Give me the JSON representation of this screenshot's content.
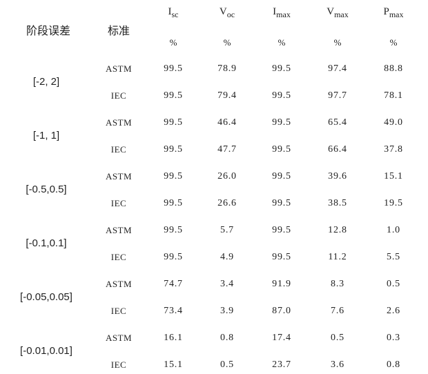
{
  "table": {
    "headers": {
      "stage": "阶段误差",
      "standard": "标准",
      "columns": [
        {
          "main": "I",
          "sub": "sc",
          "unit": "%"
        },
        {
          "main": "V",
          "sub": "oc",
          "unit": "%"
        },
        {
          "main": "I",
          "sub": "max",
          "unit": "%"
        },
        {
          "main": "V",
          "sub": "max",
          "unit": "%"
        },
        {
          "main": "P",
          "sub": "max",
          "unit": "%"
        }
      ]
    },
    "groups": [
      {
        "range": "[-2, 2]",
        "rows": [
          {
            "standard": "ASTM",
            "values": [
              "99.5",
              "78.9",
              "99.5",
              "97.4",
              "88.8"
            ]
          },
          {
            "standard": "IEC",
            "values": [
              "99.5",
              "79.4",
              "99.5",
              "97.7",
              "78.1"
            ]
          }
        ]
      },
      {
        "range": "[-1, 1]",
        "rows": [
          {
            "standard": "ASTM",
            "values": [
              "99.5",
              "46.4",
              "99.5",
              "65.4",
              "49.0"
            ]
          },
          {
            "standard": "IEC",
            "values": [
              "99.5",
              "47.7",
              "99.5",
              "66.4",
              "37.8"
            ]
          }
        ]
      },
      {
        "range": "[-0.5,0.5]",
        "rows": [
          {
            "standard": "ASTM",
            "values": [
              "99.5",
              "26.0",
              "99.5",
              "39.6",
              "15.1"
            ]
          },
          {
            "standard": "IEC",
            "values": [
              "99.5",
              "26.6",
              "99.5",
              "38.5",
              "19.5"
            ]
          }
        ]
      },
      {
        "range": "[-0.1,0.1]",
        "rows": [
          {
            "standard": "ASTM",
            "values": [
              "99.5",
              "5.7",
              "99.5",
              "12.8",
              "1.0"
            ]
          },
          {
            "standard": "IEC",
            "values": [
              "99.5",
              "4.9",
              "99.5",
              "11.2",
              "5.5"
            ]
          }
        ]
      },
      {
        "range": "[-0.05,0.05]",
        "rows": [
          {
            "standard": "ASTM",
            "values": [
              "74.7",
              "3.4",
              "91.9",
              "8.3",
              "0.5"
            ]
          },
          {
            "standard": "IEC",
            "values": [
              "73.4",
              "3.9",
              "87.0",
              "7.6",
              "2.6"
            ]
          }
        ]
      },
      {
        "range": "[-0.01,0.01]",
        "rows": [
          {
            "standard": "ASTM",
            "values": [
              "16.1",
              "0.8",
              "17.4",
              "0.5",
              "0.3"
            ]
          },
          {
            "standard": "IEC",
            "values": [
              "15.1",
              "0.5",
              "23.7",
              "3.6",
              "0.8"
            ]
          }
        ]
      }
    ]
  }
}
